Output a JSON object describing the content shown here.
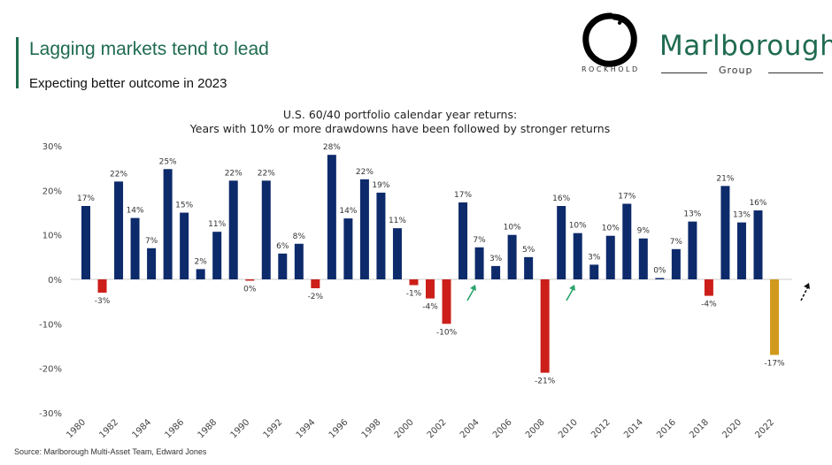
{
  "header": {
    "headline": "Lagging markets tend to lead",
    "subhead": "Expecting better outcome in 2023"
  },
  "logos": {
    "rockhold": "ROCKHOLD",
    "marlborough": "Marlborough",
    "group": "Group"
  },
  "source": "Source: Marlborough Multi-Asset Team, Edward Jones",
  "colors": {
    "brand_green": "#1f6b4f",
    "positive": "#0d2a6b",
    "negative": "#cc1f1a",
    "forecast": "#d19a1e",
    "arrow": "#2aa36b"
  },
  "chart_data": {
    "type": "bar",
    "title": "U.S. 60/40  portfolio calendar year returns:",
    "subtitle": "Years with 10% or more drawdowns have been followed by stronger returns",
    "xlabel": "",
    "ylabel": "",
    "ylim": [
      -30,
      30
    ],
    "yticks": [
      "30%",
      "20%",
      "10%",
      "0%",
      "-10%",
      "-20%",
      "-30%"
    ],
    "grid": false,
    "categories": [
      "1980",
      "1981",
      "1982",
      "1983",
      "1984",
      "1985",
      "1986",
      "1987",
      "1988",
      "1989",
      "1990",
      "1991",
      "1992",
      "1993",
      "1994",
      "1995",
      "1996",
      "1997",
      "1998",
      "1999",
      "2000",
      "2001",
      "2002",
      "2003",
      "2004",
      "2005",
      "2006",
      "2007",
      "2008",
      "2009",
      "2010",
      "2011",
      "2012",
      "2013",
      "2014",
      "2015",
      "2016",
      "2017",
      "2018",
      "2019",
      "2020",
      "2021",
      "2022"
    ],
    "x_tick_labels": [
      "1980",
      "1982",
      "1984",
      "1986",
      "1988",
      "1990",
      "1992",
      "1994",
      "1996",
      "1998",
      "2000",
      "2002",
      "2004",
      "2006",
      "2008",
      "2010",
      "2012",
      "2014",
      "2016",
      "2018",
      "2020",
      "2022"
    ],
    "values": [
      16.5,
      -3,
      22,
      13.8,
      7,
      24.8,
      15,
      2.3,
      10.7,
      22.2,
      -0.3,
      22.2,
      5.8,
      8,
      -2,
      28,
      13.7,
      22.5,
      19.5,
      11.5,
      -1.3,
      -4.3,
      -10,
      17.3,
      7.2,
      3,
      10,
      5,
      -21,
      16.5,
      10.4,
      3.3,
      9.8,
      17,
      9.2,
      0,
      6.8,
      13,
      -3.7,
      21,
      12.8,
      15.5,
      -17
    ],
    "data_labels": [
      "17%",
      "-3%",
      "22%",
      "14%",
      "7%",
      "25%",
      "15%",
      "2%",
      "11%",
      "22%",
      "0%",
      "22%",
      "6%",
      "8%",
      "-2%",
      "28%",
      "14%",
      "22%",
      "19%",
      "11%",
      "-1%",
      "-4%",
      "-10%",
      "17%",
      "7%",
      "3%",
      "10%",
      "5%",
      "-21%",
      "16%",
      "10%",
      "3%",
      "10%",
      "17%",
      "9%",
      "0%",
      "7%",
      "13%",
      "-4%",
      "21%",
      "13%",
      "16%",
      "-17%"
    ],
    "highlight_arrows": [
      "2003",
      "2009",
      "2023"
    ]
  }
}
